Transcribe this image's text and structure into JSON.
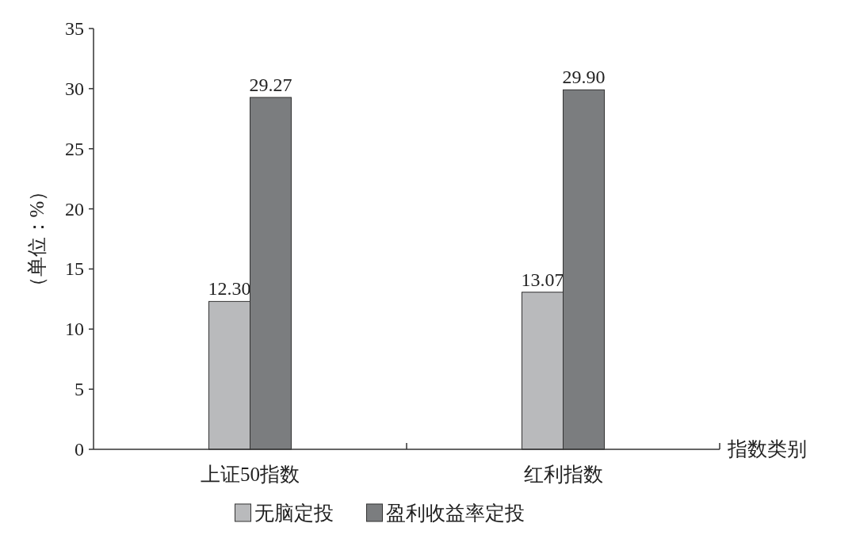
{
  "chart_data": {
    "type": "bar",
    "xlabel": "指数类别",
    "ylabel": "（单位：%）",
    "categories": [
      "上证50指数",
      "红利指数"
    ],
    "series": [
      {
        "name": "无脑定投",
        "color": "#b9babc",
        "values": [
          12.3,
          13.07
        ],
        "value_labels": [
          "12.30",
          "13.07"
        ]
      },
      {
        "name": "盈利收益率定投",
        "color": "#7b7d7f",
        "values": [
          29.27,
          29.9
        ],
        "value_labels": [
          "29.27",
          "29.90"
        ]
      }
    ],
    "ylim": [
      0,
      35
    ],
    "yticks": [
      0,
      5,
      10,
      15,
      20,
      25,
      30,
      35
    ],
    "legend": "bottom",
    "grid": false
  }
}
